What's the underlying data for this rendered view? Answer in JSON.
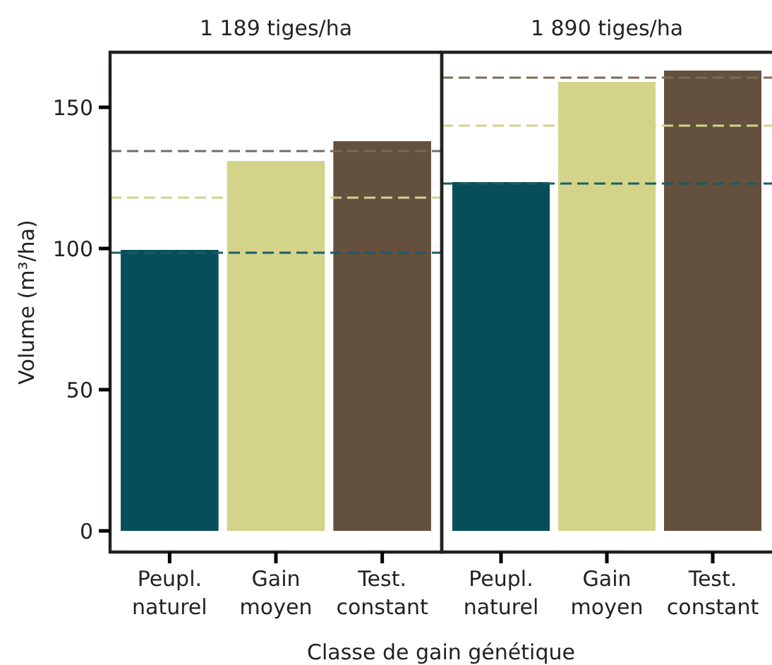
{
  "chart_data": [
    {
      "type": "bar",
      "title": "1 189 tiges/ha",
      "ylabel": "Volume (m³/ha)",
      "xlabel": "Classe de gain génétique",
      "categories": [
        "Peupl.\nnaturel",
        "Gain\nmoyen",
        "Test.\nconstant"
      ],
      "values": [
        99.5,
        131,
        138
      ],
      "colors": [
        "#064f5a",
        "#d2d48a",
        "#63513d"
      ],
      "ylim": [
        -7.5,
        169.5
      ],
      "yticks": [
        0,
        50,
        100,
        150
      ],
      "ref_lines": [
        {
          "axis": "y",
          "value": 134.5,
          "color": "#7a6a5a",
          "line_style": "dashed"
        },
        {
          "axis": "y",
          "value": 118,
          "color": "#d2d48a",
          "line_style": "dashed"
        },
        {
          "axis": "y",
          "value": 98.5,
          "color": "#1d5a68",
          "line_style": "dashed"
        }
      ]
    },
    {
      "type": "bar",
      "title": "1 890 tiges/ha",
      "categories": [
        "Peupl.\nnaturel",
        "Gain\nmoyen",
        "Test.\nconstant"
      ],
      "values": [
        123.5,
        159,
        163
      ],
      "colors": [
        "#064f5a",
        "#d2d48a",
        "#63513d"
      ],
      "ylim": [
        -7.5,
        169.5
      ],
      "tick_labels": "x",
      "ref_lines": [
        {
          "axis": "y",
          "value": 160.5,
          "color": "#7a6a5a",
          "line_style": "dashed"
        },
        {
          "axis": "y",
          "value": 143.5,
          "color": "#d2d48a",
          "line_style": "dashed"
        },
        {
          "axis": "y",
          "value": 123,
          "color": "#1d5a68",
          "line_style": "dashed"
        }
      ]
    }
  ]
}
